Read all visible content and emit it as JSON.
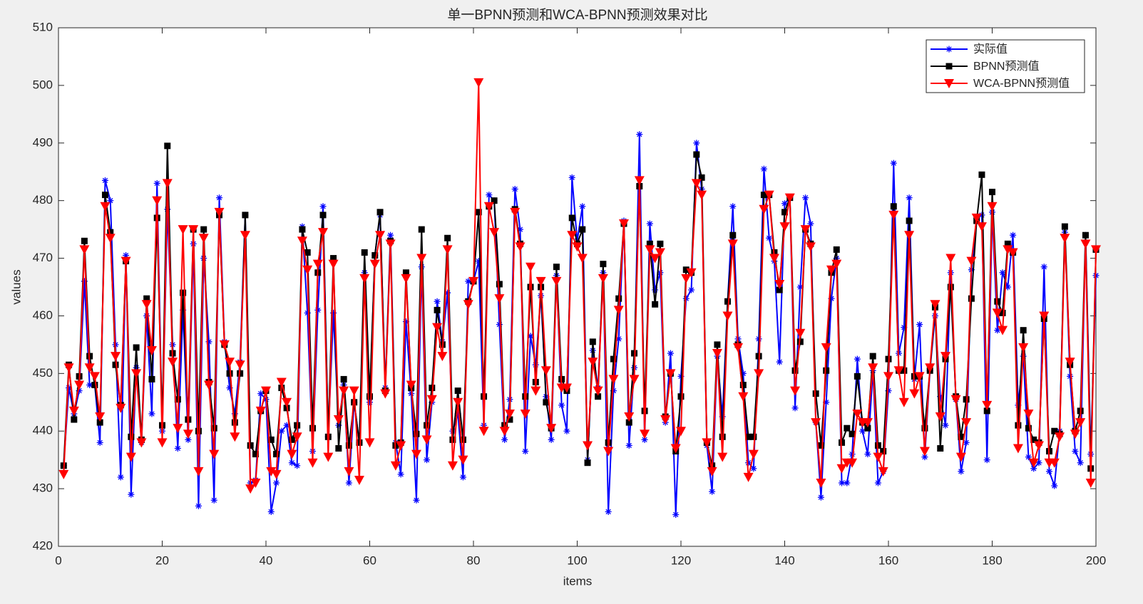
{
  "chart_data": {
    "type": "line",
    "title": "单一BPNN预测和WCA-BPNN预测效果对比",
    "xlabel": "items",
    "ylabel": "values",
    "xlim": [
      0,
      200
    ],
    "xticks": [
      0,
      20,
      40,
      60,
      80,
      100,
      120,
      140,
      160,
      180,
      200
    ],
    "ylim": [
      420,
      510
    ],
    "yticks": [
      420,
      430,
      440,
      450,
      460,
      470,
      480,
      490,
      500,
      510
    ],
    "legend": "northeast",
    "grid": false,
    "x": [
      1,
      2,
      3,
      4,
      5,
      6,
      7,
      8,
      9,
      10,
      11,
      12,
      13,
      14,
      15,
      16,
      17,
      18,
      19,
      20,
      21,
      22,
      23,
      24,
      25,
      26,
      27,
      28,
      29,
      30,
      31,
      32,
      33,
      34,
      35,
      36,
      37,
      38,
      39,
      40,
      41,
      42,
      43,
      44,
      45,
      46,
      47,
      48,
      49,
      50,
      51,
      52,
      53,
      54,
      55,
      56,
      57,
      58,
      59,
      60,
      61,
      62,
      63,
      64,
      65,
      66,
      67,
      68,
      69,
      70,
      71,
      72,
      73,
      74,
      75,
      76,
      77,
      78,
      79,
      80,
      81,
      82,
      83,
      84,
      85,
      86,
      87,
      88,
      89,
      90,
      91,
      92,
      93,
      94,
      95,
      96,
      97,
      98,
      99,
      100,
      101,
      102,
      103,
      104,
      105,
      106,
      107,
      108,
      109,
      110,
      111,
      112,
      113,
      114,
      115,
      116,
      117,
      118,
      119,
      120,
      121,
      122,
      123,
      124,
      125,
      126,
      127,
      128,
      129,
      130,
      131,
      132,
      133,
      134,
      135,
      136,
      137,
      138,
      139,
      140,
      141,
      142,
      143,
      144,
      145,
      146,
      147,
      148,
      149,
      150,
      151,
      152,
      153,
      154,
      155,
      156,
      157,
      158,
      159,
      160,
      161,
      162,
      163,
      164,
      165,
      166,
      167,
      168,
      169,
      170,
      171,
      172,
      173,
      174,
      175,
      176,
      177,
      178,
      179,
      180,
      181,
      182,
      183,
      184,
      185,
      186,
      187,
      188,
      189,
      190,
      191,
      192,
      193,
      194,
      195,
      196,
      197,
      198,
      199,
      200
    ],
    "series": [
      {
        "name": "实际值",
        "color": "#0000ff",
        "marker": "*",
        "values": [
          434,
          447.5,
          443,
          447,
          466,
          448,
          448,
          438,
          483.5,
          480,
          455,
          432,
          470.5,
          429,
          451,
          438,
          460,
          443,
          483,
          440,
          478.5,
          455,
          437,
          461,
          438.5,
          472.5,
          427,
          470,
          455.5,
          428,
          480.5,
          455.5,
          447.5,
          443,
          452,
          477.5,
          431,
          431.5,
          446.5,
          445.5,
          426,
          431,
          440,
          441,
          434.5,
          434,
          475.5,
          460.5,
          436.5,
          461,
          479,
          439,
          460.5,
          441,
          448,
          431,
          445,
          438,
          467.5,
          445,
          470.5,
          477.5,
          447.5,
          474,
          438,
          432.5,
          459,
          446.5,
          428,
          468.5,
          435,
          445,
          462.5,
          455.5,
          464,
          440,
          443,
          432,
          466,
          466,
          469.5,
          441,
          481,
          480,
          458.5,
          438.5,
          445.5,
          482,
          475,
          436.5,
          456.5,
          451.5,
          463.5,
          446,
          438.5,
          467,
          444.5,
          440,
          484,
          473,
          479,
          435,
          454,
          447.5,
          467.5,
          426,
          447,
          456,
          476.5,
          437.5,
          451,
          491.5,
          438.5,
          476,
          464.5,
          467.5,
          441.5,
          453.5,
          425.5,
          449.5,
          463,
          464.5,
          490,
          482,
          437.5,
          429.5,
          453,
          442.5,
          462.5,
          479,
          456,
          450,
          434.5,
          433.5,
          456,
          485.5,
          473.5,
          469.5,
          452,
          479.5,
          480.5,
          444,
          465,
          480.5,
          476,
          441.5,
          428.5,
          445,
          463,
          470,
          431,
          431,
          436,
          452.5,
          440,
          436,
          450.5,
          431,
          433,
          447,
          486.5,
          453.5,
          458,
          480.5,
          449,
          458.5,
          435.5,
          450.5,
          460,
          446,
          441,
          467.5,
          445.5,
          433,
          438,
          468,
          477,
          477.5,
          435,
          478,
          457.5,
          467.5,
          465,
          474,
          444.5,
          453,
          435.5,
          433.5,
          434.5,
          468.5,
          433,
          430.5,
          440,
          474.5,
          449.5,
          436.5,
          434.5,
          474,
          436,
          467
        ]
      },
      {
        "name": "BPNN预测值",
        "color": "#000000",
        "marker": "s",
        "values": [
          434,
          451.5,
          442,
          449.5,
          473,
          453,
          448,
          441.5,
          481,
          474.5,
          451.5,
          444.5,
          469.5,
          439,
          454.5,
          438.5,
          463,
          449,
          477,
          441,
          489.5,
          453.5,
          445.5,
          464,
          442,
          475,
          440,
          475,
          448.5,
          440.5,
          477.5,
          455,
          450,
          441.5,
          450,
          477.5,
          437.5,
          436,
          443.5,
          447,
          438.5,
          436,
          447.5,
          444,
          438.5,
          441,
          475,
          471,
          440.5,
          467.5,
          477.5,
          439,
          470,
          437,
          449,
          437.5,
          445,
          438,
          471,
          446,
          470.5,
          478,
          447,
          473,
          437.5,
          438,
          467.5,
          447.5,
          439.5,
          475,
          441,
          447.5,
          461,
          455,
          473.5,
          438.5,
          447,
          438.5,
          462.5,
          466,
          478,
          446,
          479,
          480,
          465.5,
          441,
          442,
          478.5,
          472.5,
          446,
          465,
          448.5,
          465,
          445,
          440.5,
          468.5,
          449,
          447,
          477,
          472.5,
          475,
          434.5,
          455.5,
          446,
          469,
          438,
          452.5,
          463,
          476,
          441.5,
          453.5,
          482.5,
          443.5,
          472.5,
          462,
          472.5,
          442.5,
          450,
          436.5,
          446,
          468,
          467.5,
          488,
          484,
          438,
          434,
          455,
          439,
          462.5,
          474,
          455,
          448,
          439,
          439,
          453,
          481,
          481,
          471,
          464.5,
          478,
          480.5,
          450.5,
          455.5,
          475,
          472.5,
          446.5,
          437.5,
          450.5,
          467.5,
          471.5,
          438,
          440.5,
          439.5,
          449.5,
          441.5,
          440.5,
          453,
          437.5,
          436.5,
          452.5,
          479,
          450.5,
          450.5,
          476.5,
          449.5,
          449.5,
          440.5,
          450.5,
          461.5,
          437,
          452.5,
          465,
          446,
          439,
          445.5,
          463,
          476.5,
          484.5,
          443.5,
          481.5,
          462.5,
          460.5,
          472.5,
          471,
          441,
          457.5,
          440.5,
          438.5,
          438,
          459.5,
          436.5,
          440,
          439.5,
          475.5,
          451.5,
          440,
          443.5,
          474,
          433.5,
          471.5
        ]
      },
      {
        "name": "WCA-BPNN预测值",
        "color": "#ff0000",
        "marker": "v",
        "values": [
          432.5,
          451,
          443.5,
          448,
          471.5,
          451,
          449.5,
          442.5,
          479,
          473.5,
          453,
          444,
          469.5,
          435.5,
          450,
          438,
          462,
          454,
          480,
          438,
          483,
          452,
          440.5,
          475,
          439.5,
          475,
          433,
          473.5,
          448,
          436,
          478,
          455,
          452,
          439,
          451.5,
          474,
          430,
          431,
          443.5,
          447,
          433,
          432.5,
          448.5,
          445,
          436,
          439,
          473,
          468,
          434.5,
          469,
          474.5,
          435.5,
          469,
          442,
          447,
          433,
          447,
          431.5,
          466.5,
          438,
          469,
          474,
          446.5,
          472.5,
          434,
          437.5,
          466.5,
          448,
          436,
          470,
          438.5,
          445.5,
          458,
          453,
          471.5,
          434,
          445,
          435,
          462,
          466,
          500.5,
          440,
          479,
          474.5,
          463,
          440,
          443,
          478,
          472,
          443,
          468.5,
          447,
          466,
          450.5,
          440.5,
          466,
          447.5,
          447.5,
          474,
          472,
          470,
          437.5,
          452,
          447,
          466.5,
          436.5,
          449,
          461,
          476,
          442.5,
          449,
          483.5,
          439.5,
          471.5,
          470,
          471,
          442,
          450,
          437,
          440,
          466.5,
          467.5,
          483,
          481,
          438,
          433,
          453.5,
          435.5,
          460,
          472.5,
          454.5,
          446,
          432,
          436,
          450,
          478.5,
          481,
          470,
          465.5,
          475.5,
          480.5,
          447,
          457,
          475,
          472,
          441.5,
          431,
          454.5,
          468,
          469,
          433.5,
          434.5,
          434.5,
          443,
          441.5,
          441.5,
          451,
          435.5,
          433,
          449.5,
          477.5,
          450.5,
          445,
          474,
          446.5,
          449.5,
          436.5,
          451,
          462,
          442.5,
          453,
          470,
          445.5,
          435.5,
          441.5,
          469.5,
          477,
          475.5,
          444.5,
          479,
          460.5,
          457.5,
          471.5,
          471,
          437,
          454.5,
          443,
          434.5,
          437.5,
          460,
          434.5,
          434.5,
          439,
          473.5,
          452,
          439.5,
          441.5,
          472.5,
          431,
          471.5
        ]
      }
    ]
  }
}
